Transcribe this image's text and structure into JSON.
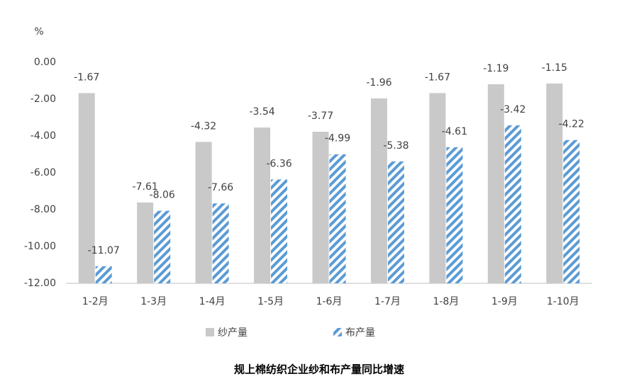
{
  "chart_data": {
    "type": "bar",
    "title": "规上棉纺织企业纱和布产量同比增速",
    "y_label": "%",
    "categories": [
      "1-2月",
      "1-3月",
      "1-4月",
      "1-5月",
      "1-6月",
      "1-7月",
      "1-8月",
      "1-9月",
      "1-10月"
    ],
    "series": [
      {
        "name": "纱产量",
        "color": "#c9c9c9",
        "values": [
          -1.67,
          -7.61,
          -4.32,
          -3.54,
          -3.77,
          -1.96,
          -1.67,
          -1.19,
          -1.15
        ]
      },
      {
        "name": "布产量",
        "color": "#5b9bd5",
        "values": [
          -11.07,
          -8.06,
          -7.66,
          -6.36,
          -4.99,
          -5.38,
          -4.61,
          -3.42,
          -4.22
        ]
      }
    ],
    "ylim": [
      -12,
      0
    ],
    "yticks": [
      {
        "value": 0,
        "label": "0.00"
      },
      {
        "value": -2,
        "label": "-2.00"
      },
      {
        "value": -4,
        "label": "-4.00"
      },
      {
        "value": -6,
        "label": "-6.00"
      },
      {
        "value": -8,
        "label": "-8.00"
      },
      {
        "value": -10,
        "label": "-10.00"
      },
      {
        "value": -12,
        "label": "-12.00"
      }
    ],
    "grid": false
  }
}
